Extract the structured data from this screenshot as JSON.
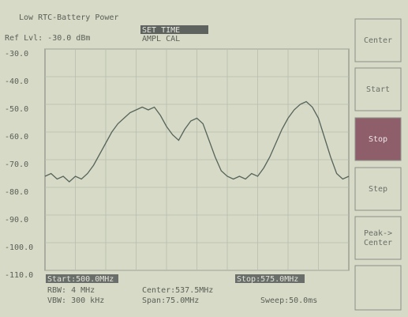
{
  "screen": {
    "warning": "Low RTC-Battery Power",
    "ref_level": "Ref Lvl: -30.0 dBm",
    "menu_selected": "SET TIME",
    "menu_item": "AMPL  CAL",
    "start": "Start:500.0MHz",
    "stop": "Stop:575.0MHz",
    "rbw": "RBW: 4 MHz",
    "vbw": "VBW: 300 kHz",
    "center": "Center:537.5MHz",
    "span": "Span:75.0MHz",
    "sweep": "Sweep:50.0ms",
    "buttons": [
      {
        "label": [
          "Center"
        ]
      },
      {
        "label": [
          "Start"
        ]
      },
      {
        "label": [
          "Stop"
        ],
        "active": true
      },
      {
        "label": [
          "Step"
        ]
      },
      {
        "label": [
          "Peak->",
          "Center"
        ]
      }
    ]
  },
  "chart_data": {
    "type": "line",
    "color": "#56645a",
    "xlim": [
      500,
      575
    ],
    "ylim": [
      -110,
      -30
    ],
    "yticks": [
      {
        "value": -30,
        "label": "-30.0"
      },
      {
        "value": -40,
        "label": "-40.0"
      },
      {
        "value": -50,
        "label": "-50.0"
      },
      {
        "value": -60,
        "label": "-60.0"
      },
      {
        "value": -70,
        "label": "-70.0"
      },
      {
        "value": -80,
        "label": "-80.0"
      },
      {
        "value": -90,
        "label": "-90.0"
      },
      {
        "value": -100,
        "label": "-100.0"
      },
      {
        "value": -110,
        "label": "-110.0"
      }
    ],
    "grid": true,
    "x": [
      500,
      501.5,
      503,
      504.5,
      506,
      507.5,
      509,
      510.5,
      512,
      513.5,
      515,
      516.5,
      518,
      519.5,
      521,
      522.5,
      524,
      525.5,
      527,
      528.5,
      530,
      531.5,
      533,
      534.5,
      536,
      537.5,
      539,
      540.5,
      542,
      543.5,
      545,
      546.5,
      548,
      549.5,
      551,
      552.5,
      554,
      555.5,
      557,
      558.5,
      560,
      561.5,
      563,
      564.5,
      566,
      567.5,
      569,
      570.5,
      572,
      573.5,
      575
    ],
    "values": [
      -76,
      -75,
      -77,
      -76,
      -78,
      -76,
      -77,
      -75,
      -72,
      -68,
      -64,
      -60,
      -57,
      -55,
      -53,
      -52,
      -51,
      -52,
      -51,
      -54,
      -58,
      -61,
      -63,
      -59,
      -56,
      -55,
      -57,
      -63,
      -69,
      -74,
      -76,
      -77,
      -76,
      -77,
      -75,
      -76,
      -73,
      -69,
      -64,
      -59,
      -55,
      -52,
      -50,
      -49,
      -51,
      -55,
      -62,
      -69,
      -75,
      -77,
      -76
    ]
  }
}
